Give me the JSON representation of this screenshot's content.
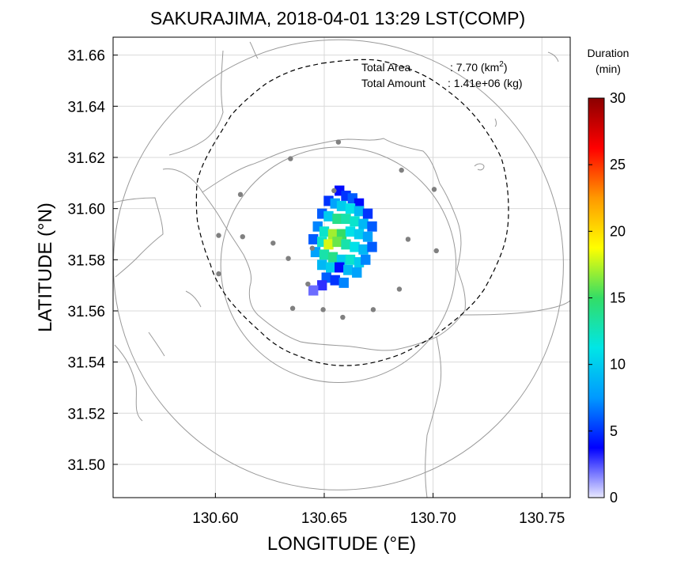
{
  "title": "SAKURAJIMA, 2018-04-01 13:29 LST(COMP)",
  "axes": {
    "xlabel": "LONGITUDE (°E)",
    "ylabel": "LATITUDE (°N)",
    "xlim": [
      130.553,
      130.763
    ],
    "ylim": [
      31.487,
      31.667
    ],
    "xticks": [
      130.6,
      130.65,
      130.7,
      130.75
    ],
    "xtick_labels": [
      "130.60",
      "130.65",
      "130.70",
      "130.75"
    ],
    "yticks": [
      31.5,
      31.52,
      31.54,
      31.56,
      31.58,
      31.6,
      31.62,
      31.64,
      31.66
    ],
    "ytick_labels": [
      "31.50",
      "31.52",
      "31.54",
      "31.56",
      "31.58",
      "31.60",
      "31.62",
      "31.64",
      "31.66"
    ],
    "grid": true
  },
  "info": {
    "area_label": "Total Area",
    "area_value": ": 7.70 (km",
    "area_sup": "2",
    "area_close": ")",
    "amount_label": "Total Amount",
    "amount_value": ": 1.41e+06 (kg)"
  },
  "colorbar": {
    "title_line1": "Duration",
    "title_line2": "(min)",
    "range": [
      0,
      30
    ],
    "ticks": [
      0,
      5,
      10,
      15,
      20,
      25,
      30
    ],
    "tick_labels": [
      "0",
      "5",
      "10",
      "15",
      "20",
      "25",
      "30"
    ],
    "colormap": [
      "#e8e8ff",
      "#0000ff",
      "#0099ff",
      "#00e6e6",
      "#33dd66",
      "#ffff00",
      "#ff9900",
      "#ff0000",
      "#8b0000"
    ]
  },
  "map": {
    "circle_center": [
      130.6565,
      31.578
    ],
    "outer_circle_radius_deg_lat": 0.088,
    "inner_circle_radius_deg_lat": 0.046,
    "stations": [
      [
        130.6565,
        31.626
      ],
      [
        130.6345,
        31.6195
      ],
      [
        130.6855,
        31.615
      ],
      [
        130.6115,
        31.6055
      ],
      [
        130.7005,
        31.6075
      ],
      [
        130.6545,
        31.607
      ],
      [
        130.6015,
        31.5895
      ],
      [
        130.6125,
        31.589
      ],
      [
        130.6885,
        31.588
      ],
      [
        130.6265,
        31.5865
      ],
      [
        130.7015,
        31.5835
      ],
      [
        130.6445,
        31.5845
      ],
      [
        130.6335,
        31.5805
      ],
      [
        130.6015,
        31.5745
      ],
      [
        130.6425,
        31.5705
      ],
      [
        130.6845,
        31.5685
      ],
      [
        130.6355,
        31.561
      ],
      [
        130.6495,
        31.5605
      ],
      [
        130.6725,
        31.5605
      ],
      [
        130.6585,
        31.5575
      ]
    ],
    "ashfall_cells": [
      [
        130.657,
        31.607,
        4
      ],
      [
        130.66,
        31.605,
        5
      ],
      [
        130.663,
        31.604,
        6
      ],
      [
        130.666,
        31.602,
        4
      ],
      [
        130.652,
        31.603,
        5
      ],
      [
        130.655,
        31.602,
        8
      ],
      [
        130.658,
        31.601,
        10
      ],
      [
        130.662,
        31.6,
        11
      ],
      [
        130.666,
        31.599,
        9
      ],
      [
        130.67,
        31.598,
        5
      ],
      [
        130.649,
        31.598,
        6
      ],
      [
        130.652,
        31.597,
        10
      ],
      [
        130.656,
        31.596,
        14
      ],
      [
        130.66,
        31.596,
        13
      ],
      [
        130.664,
        31.595,
        12
      ],
      [
        130.668,
        31.594,
        9
      ],
      [
        130.672,
        31.593,
        6
      ],
      [
        130.647,
        31.593,
        7
      ],
      [
        130.65,
        31.591,
        12
      ],
      [
        130.654,
        31.59,
        17
      ],
      [
        130.658,
        31.59,
        15
      ],
      [
        130.662,
        31.591,
        11
      ],
      [
        130.666,
        31.59,
        10
      ],
      [
        130.67,
        31.589,
        8
      ],
      [
        130.645,
        31.588,
        6
      ],
      [
        130.649,
        31.587,
        12
      ],
      [
        130.652,
        31.586,
        18
      ],
      [
        130.656,
        31.587,
        16
      ],
      [
        130.66,
        31.586,
        13
      ],
      [
        130.664,
        31.585,
        11
      ],
      [
        130.668,
        31.584,
        9
      ],
      [
        130.672,
        31.585,
        6
      ],
      [
        130.646,
        31.583,
        8
      ],
      [
        130.65,
        31.582,
        13
      ],
      [
        130.654,
        31.581,
        14
      ],
      [
        130.658,
        31.58,
        10
      ],
      [
        130.662,
        31.58,
        12
      ],
      [
        130.666,
        31.579,
        10
      ],
      [
        130.669,
        31.58,
        7
      ],
      [
        130.649,
        31.578,
        9
      ],
      [
        130.653,
        31.577,
        10
      ],
      [
        130.657,
        31.577,
        4
      ],
      [
        130.661,
        31.576,
        9
      ],
      [
        130.665,
        31.575,
        8
      ],
      [
        130.651,
        31.573,
        6
      ],
      [
        130.655,
        31.572,
        5
      ],
      [
        130.659,
        31.571,
        7
      ],
      [
        130.649,
        31.57,
        3
      ],
      [
        130.645,
        31.568,
        2
      ]
    ]
  }
}
